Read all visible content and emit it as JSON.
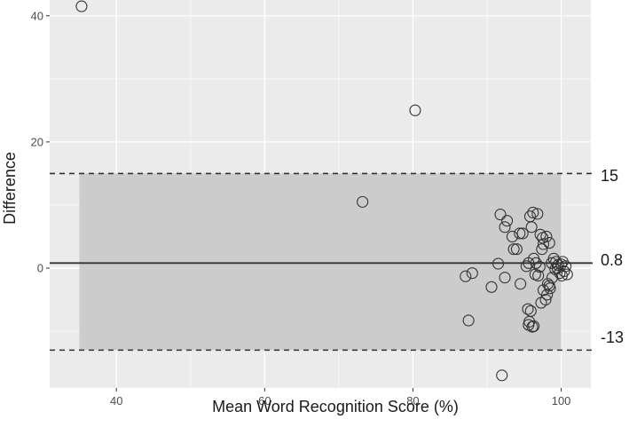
{
  "chart_data": {
    "type": "scatter",
    "xlabel": "Mean Word Recognition Score (%)",
    "ylabel": "Difference",
    "xlim": [
      31,
      104
    ],
    "ylim": [
      -19,
      42.5
    ],
    "xticks": [
      40,
      60,
      80,
      100
    ],
    "yticks": [
      0,
      20,
      40
    ],
    "grid": true,
    "mean_difference": 0.8,
    "upper_limit": 15,
    "lower_limit": -13,
    "shaded_band_x": [
      35,
      100
    ],
    "reference_labels": {
      "upper": "15",
      "mean": "0.8",
      "lower": "-13"
    },
    "points": [
      {
        "x": 35.3,
        "y": 41.5
      },
      {
        "x": 80.3,
        "y": 25
      },
      {
        "x": 73.2,
        "y": 10.5
      },
      {
        "x": 87.1,
        "y": -1.3
      },
      {
        "x": 87.5,
        "y": -8.3
      },
      {
        "x": 88.0,
        "y": -0.8
      },
      {
        "x": 90.6,
        "y": -3.0
      },
      {
        "x": 91.5,
        "y": 0.7
      },
      {
        "x": 92.0,
        "y": -17.0
      },
      {
        "x": 91.8,
        "y": 8.5
      },
      {
        "x": 92.4,
        "y": 6.5
      },
      {
        "x": 92.7,
        "y": 7.5
      },
      {
        "x": 92.4,
        "y": -1.5
      },
      {
        "x": 93.4,
        "y": 5.0
      },
      {
        "x": 93.6,
        "y": 3.0
      },
      {
        "x": 94.0,
        "y": 3.0
      },
      {
        "x": 94.4,
        "y": 5.5
      },
      {
        "x": 94.8,
        "y": 5.5
      },
      {
        "x": 94.5,
        "y": -2.5
      },
      {
        "x": 95.3,
        "y": 0.3
      },
      {
        "x": 95.6,
        "y": 0.8
      },
      {
        "x": 95.5,
        "y": -6.5
      },
      {
        "x": 95.7,
        "y": -8.5
      },
      {
        "x": 95.9,
        "y": -6.8
      },
      {
        "x": 95.6,
        "y": -9.0
      },
      {
        "x": 96.1,
        "y": -9.3
      },
      {
        "x": 96.3,
        "y": -9.2
      },
      {
        "x": 95.8,
        "y": 8.2
      },
      {
        "x": 96.2,
        "y": 8.8
      },
      {
        "x": 96.8,
        "y": 8.6
      },
      {
        "x": 96.0,
        "y": 6.5
      },
      {
        "x": 96.3,
        "y": 1.5
      },
      {
        "x": 96.6,
        "y": 0.8
      },
      {
        "x": 96.5,
        "y": -1.0
      },
      {
        "x": 96.9,
        "y": -1.2
      },
      {
        "x": 97.1,
        "y": 0.2
      },
      {
        "x": 97.2,
        "y": 5.3
      },
      {
        "x": 97.5,
        "y": 4.8
      },
      {
        "x": 97.6,
        "y": 3.8
      },
      {
        "x": 97.4,
        "y": 3.0
      },
      {
        "x": 98.0,
        "y": 5.0
      },
      {
        "x": 98.4,
        "y": 4.0
      },
      {
        "x": 97.6,
        "y": -3.5
      },
      {
        "x": 97.9,
        "y": -5.0
      },
      {
        "x": 97.3,
        "y": -5.5
      },
      {
        "x": 98.2,
        "y": -2.5
      },
      {
        "x": 98.5,
        "y": -3.2
      },
      {
        "x": 98.1,
        "y": -4.2
      },
      {
        "x": 98.4,
        "y": -2.8
      },
      {
        "x": 98.8,
        "y": -1.5
      },
      {
        "x": 99.0,
        "y": 1.5
      },
      {
        "x": 99.3,
        "y": 1.0
      },
      {
        "x": 99.5,
        "y": 0.0
      },
      {
        "x": 99.8,
        "y": -0.8
      },
      {
        "x": 100.0,
        "y": 0.6
      },
      {
        "x": 100.2,
        "y": 1.0
      },
      {
        "x": 100.4,
        "y": -0.5
      },
      {
        "x": 100.6,
        "y": 0.3
      },
      {
        "x": 100.8,
        "y": -1.0
      },
      {
        "x": 99.6,
        "y": 0.5
      },
      {
        "x": 100.1,
        "y": -1.2
      },
      {
        "x": 99.2,
        "y": -0.2
      },
      {
        "x": 98.7,
        "y": 0.8
      }
    ]
  }
}
